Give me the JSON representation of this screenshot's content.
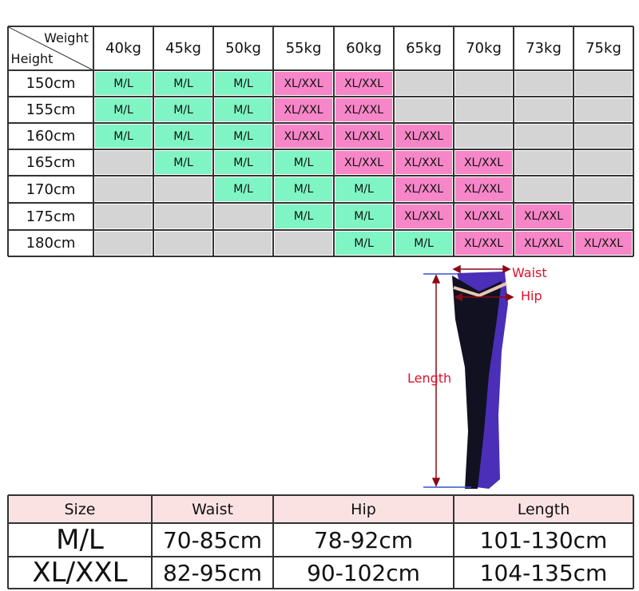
{
  "size_chart": {
    "corner": {
      "weight": "Weight",
      "height": "Height"
    },
    "weights": [
      "40kg",
      "45kg",
      "50kg",
      "55kg",
      "60kg",
      "65kg",
      "70kg",
      "73kg",
      "75kg"
    ],
    "rows": [
      {
        "height": "150cm",
        "cells": [
          "M/L",
          "M/L",
          "M/L",
          "XL/XXL",
          "XL/XXL",
          null,
          null,
          null,
          null
        ]
      },
      {
        "height": "155cm",
        "cells": [
          "M/L",
          "M/L",
          "M/L",
          "XL/XXL",
          "XL/XXL",
          null,
          null,
          null,
          null
        ]
      },
      {
        "height": "160cm",
        "cells": [
          "M/L",
          "M/L",
          "M/L",
          "XL/XXL",
          "XL/XXL",
          "XL/XXL",
          null,
          null,
          null
        ]
      },
      {
        "height": "165cm",
        "cells": [
          null,
          "M/L",
          "M/L",
          "M/L",
          "XL/XXL",
          "XL/XXL",
          "XL/XXL",
          null,
          null
        ]
      },
      {
        "height": "170cm",
        "cells": [
          null,
          null,
          "M/L",
          "M/L",
          "M/L",
          "XL/XXL",
          "XL/XXL",
          null,
          null
        ]
      },
      {
        "height": "175cm",
        "cells": [
          null,
          null,
          null,
          "M/L",
          "M/L",
          "XL/XXL",
          "XL/XXL",
          "XL/XXL",
          null
        ]
      },
      {
        "height": "180cm",
        "cells": [
          null,
          null,
          null,
          null,
          "M/L",
          "M/L",
          "XL/XXL",
          "XL/XXL",
          "XL/XXL"
        ]
      }
    ]
  },
  "diagram": {
    "waist": "Waist",
    "hip": "Hip",
    "length": "Length"
  },
  "measurements": {
    "headers": [
      "Size",
      "Waist",
      "Hip",
      "Length"
    ],
    "rows": [
      [
        "M/L",
        "70-85cm",
        "78-92cm",
        "101-130cm"
      ],
      [
        "XL/XXL",
        "82-95cm",
        "90-102cm",
        "104-135cm"
      ]
    ]
  }
}
